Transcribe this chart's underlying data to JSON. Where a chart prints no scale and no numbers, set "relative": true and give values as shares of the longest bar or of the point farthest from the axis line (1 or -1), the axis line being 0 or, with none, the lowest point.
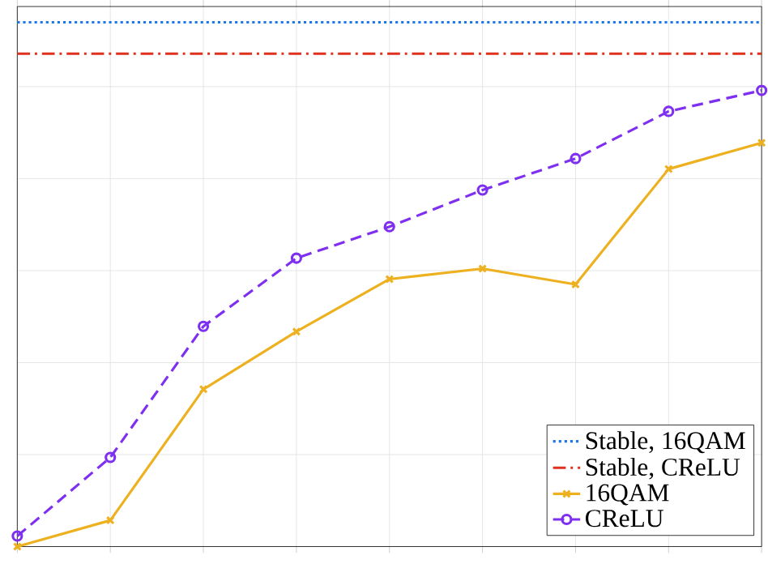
{
  "chart_data": {
    "type": "line",
    "relative": true,
    "categories": [
      null,
      null,
      null,
      null,
      null,
      null,
      null,
      null,
      null
    ],
    "grid": true,
    "legend": "bottom right",
    "series": [
      {
        "name": "Stable, 16QAM",
        "color": "#1f77e8",
        "values": [
          1,
          1,
          1,
          1,
          1,
          1,
          1,
          1,
          1
        ],
        "marker": "none",
        "line_style": "dotted"
      },
      {
        "name": "Stable, CReLU",
        "color": "#e0301e",
        "values": [
          0.94,
          0.94,
          0.94,
          0.94,
          0.94,
          0.94,
          0.94,
          0.94,
          0.94
        ],
        "marker": "none",
        "line_style": "dashdot"
      },
      {
        "name": "16QAM",
        "color": "#edb120",
        "values": [
          0,
          0.05,
          0.3,
          0.41,
          0.51,
          0.53,
          0.5,
          0.72,
          0.77
        ],
        "marker": "cross",
        "line_style": "solid"
      },
      {
        "name": "CReLU",
        "color": "#7e2ff0",
        "values": [
          0.02,
          0.17,
          0.42,
          0.55,
          0.61,
          0.68,
          0.74,
          0.83,
          0.87
        ],
        "marker": "circle",
        "line_style": "dashed"
      }
    ]
  }
}
